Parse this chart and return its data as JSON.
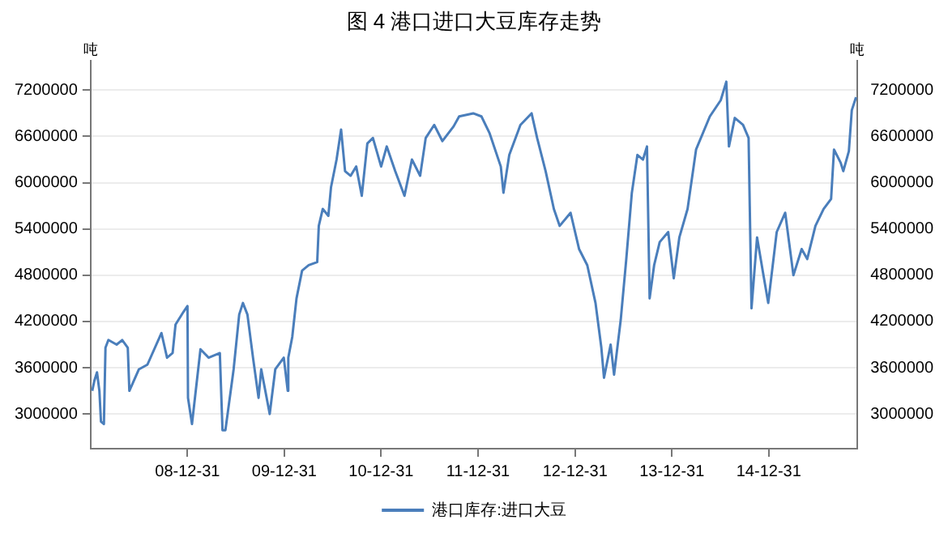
{
  "chart_data": {
    "type": "line",
    "title": "图 4 港口进口大豆库存走势",
    "ylabel": "吨",
    "y2label": "吨",
    "x": [
      "2008-01-07",
      "2008-01-15",
      "2008-01-25",
      "2008-02-03",
      "2008-02-09",
      "2008-02-20",
      "2008-02-26",
      "2008-03-08",
      "2008-04-08",
      "2008-04-29",
      "2008-05-20",
      "2008-05-26",
      "2008-07-01",
      "2008-08-02",
      "2008-09-24",
      "2008-10-15",
      "2008-11-05",
      "2008-11-16",
      "2008-12-17",
      "2008-12-31",
      "2009-01-02",
      "2009-01-17",
      "2009-02-18",
      "2009-03-21",
      "2009-05-02",
      "2009-05-12",
      "2009-05-23",
      "2009-06-23",
      "2009-07-14",
      "2009-07-28",
      "2009-08-14",
      "2009-09-04",
      "2009-09-25",
      "2009-10-05",
      "2009-11-06",
      "2009-11-27",
      "2009-12-29",
      "2010-01-13",
      "2010-01-15",
      "2010-01-30",
      "2010-02-15",
      "2010-03-08",
      "2010-04-02",
      "2010-05-04",
      "2010-05-10",
      "2010-05-25",
      "2010-06-15",
      "2010-06-25",
      "2010-07-16",
      "2010-08-02",
      "2010-08-17",
      "2010-09-07",
      "2010-09-28",
      "2010-10-19",
      "2010-11-09",
      "2010-11-30",
      "2010-12-31",
      "2011-01-21",
      "2011-02-22",
      "2011-03-29",
      "2011-04-26",
      "2011-05-27",
      "2011-06-17",
      "2011-07-19",
      "2011-08-19",
      "2011-09-30",
      "2011-10-21",
      "2011-12-13",
      "2012-01-13",
      "2012-02-13",
      "2012-03-26",
      "2012-04-05",
      "2012-04-27",
      "2012-06-08",
      "2012-07-20",
      "2012-08-10",
      "2012-09-11",
      "2012-10-12",
      "2012-11-03",
      "2012-12-14",
      "2013-01-15",
      "2013-02-15",
      "2013-03-18",
      "2013-04-09",
      "2013-04-19",
      "2013-05-14",
      "2013-05-27",
      "2013-06-21",
      "2013-07-12",
      "2013-08-02",
      "2013-08-23",
      "2013-09-13",
      "2013-09-28",
      "2013-10-08",
      "2013-10-25",
      "2013-11-15",
      "2013-12-17",
      "2014-01-07",
      "2014-01-28",
      "2014-02-28",
      "2014-04-01",
      "2014-05-23",
      "2014-07-03",
      "2014-07-24",
      "2014-08-03",
      "2014-08-25",
      "2014-09-25",
      "2014-10-16",
      "2014-10-27",
      "2014-11-17",
      "2014-12-08",
      "2014-12-29",
      "2015-01-30",
      "2015-03-03",
      "2015-04-03",
      "2015-05-04",
      "2015-05-25",
      "2015-06-25",
      "2015-07-26",
      "2015-08-23",
      "2015-09-03",
      "2015-09-28",
      "2015-10-08",
      "2015-10-29",
      "2015-11-09",
      "2015-11-25"
    ],
    "series": [
      {
        "name": "港口库存:进口大豆",
        "color": "#4a7ebb",
        "values": [
          3300000,
          3430000,
          3540000,
          3300000,
          2900000,
          2870000,
          3860000,
          3960000,
          3900000,
          3960000,
          3860000,
          3300000,
          3580000,
          3640000,
          4050000,
          3730000,
          3790000,
          4160000,
          4330000,
          4400000,
          3210000,
          2870000,
          3840000,
          3730000,
          3790000,
          2790000,
          2790000,
          3580000,
          4290000,
          4440000,
          4290000,
          3730000,
          3210000,
          3580000,
          3000000,
          3580000,
          3730000,
          3300000,
          3730000,
          4000000,
          4500000,
          4860000,
          4930000,
          4970000,
          5440000,
          5660000,
          5570000,
          5940000,
          6300000,
          6690000,
          6150000,
          6090000,
          6210000,
          5830000,
          6510000,
          6580000,
          6210000,
          6470000,
          6150000,
          5830000,
          6300000,
          6090000,
          6580000,
          6750000,
          6540000,
          6730000,
          6860000,
          6900000,
          6860000,
          6640000,
          6210000,
          5870000,
          6360000,
          6750000,
          6900000,
          6580000,
          6150000,
          5660000,
          5440000,
          5610000,
          5140000,
          4930000,
          4440000,
          3860000,
          3470000,
          3900000,
          3510000,
          4220000,
          5010000,
          5870000,
          6360000,
          6300000,
          6470000,
          4500000,
          4930000,
          5230000,
          5360000,
          4760000,
          5290000,
          5660000,
          6430000,
          6860000,
          7070000,
          7310000,
          6470000,
          6840000,
          6750000,
          6580000,
          4370000,
          5290000,
          4860000,
          4440000,
          5360000,
          5610000,
          4800000,
          5140000,
          5010000,
          5440000,
          5660000,
          5790000,
          6430000,
          6260000,
          6150000,
          6410000,
          6940000,
          7110000
        ]
      }
    ],
    "xlim": [
      "2008-01-01",
      "2015-11-30"
    ],
    "xticks": [
      {
        "value": "2008-12-31",
        "label": "08-12-31"
      },
      {
        "value": "2009-12-31",
        "label": "09-12-31"
      },
      {
        "value": "2010-12-31",
        "label": "10-12-31"
      },
      {
        "value": "2011-12-31",
        "label": "11-12-31"
      },
      {
        "value": "2012-12-31",
        "label": "12-12-31"
      },
      {
        "value": "2013-12-31",
        "label": "13-12-31"
      },
      {
        "value": "2014-12-31",
        "label": "14-12-31"
      }
    ],
    "ylim": [
      2550000,
      7580000
    ],
    "yticks": [
      3000000,
      3600000,
      4200000,
      4800000,
      5400000,
      6000000,
      6600000,
      7200000
    ],
    "y2lim": [
      2550000,
      7580000
    ],
    "y2ticks": [
      3000000,
      3600000,
      4200000,
      4800000,
      5400000,
      6000000,
      6600000,
      7200000
    ],
    "grid": "y",
    "legend": "bottom",
    "marker": "none",
    "line_style": "solid"
  }
}
